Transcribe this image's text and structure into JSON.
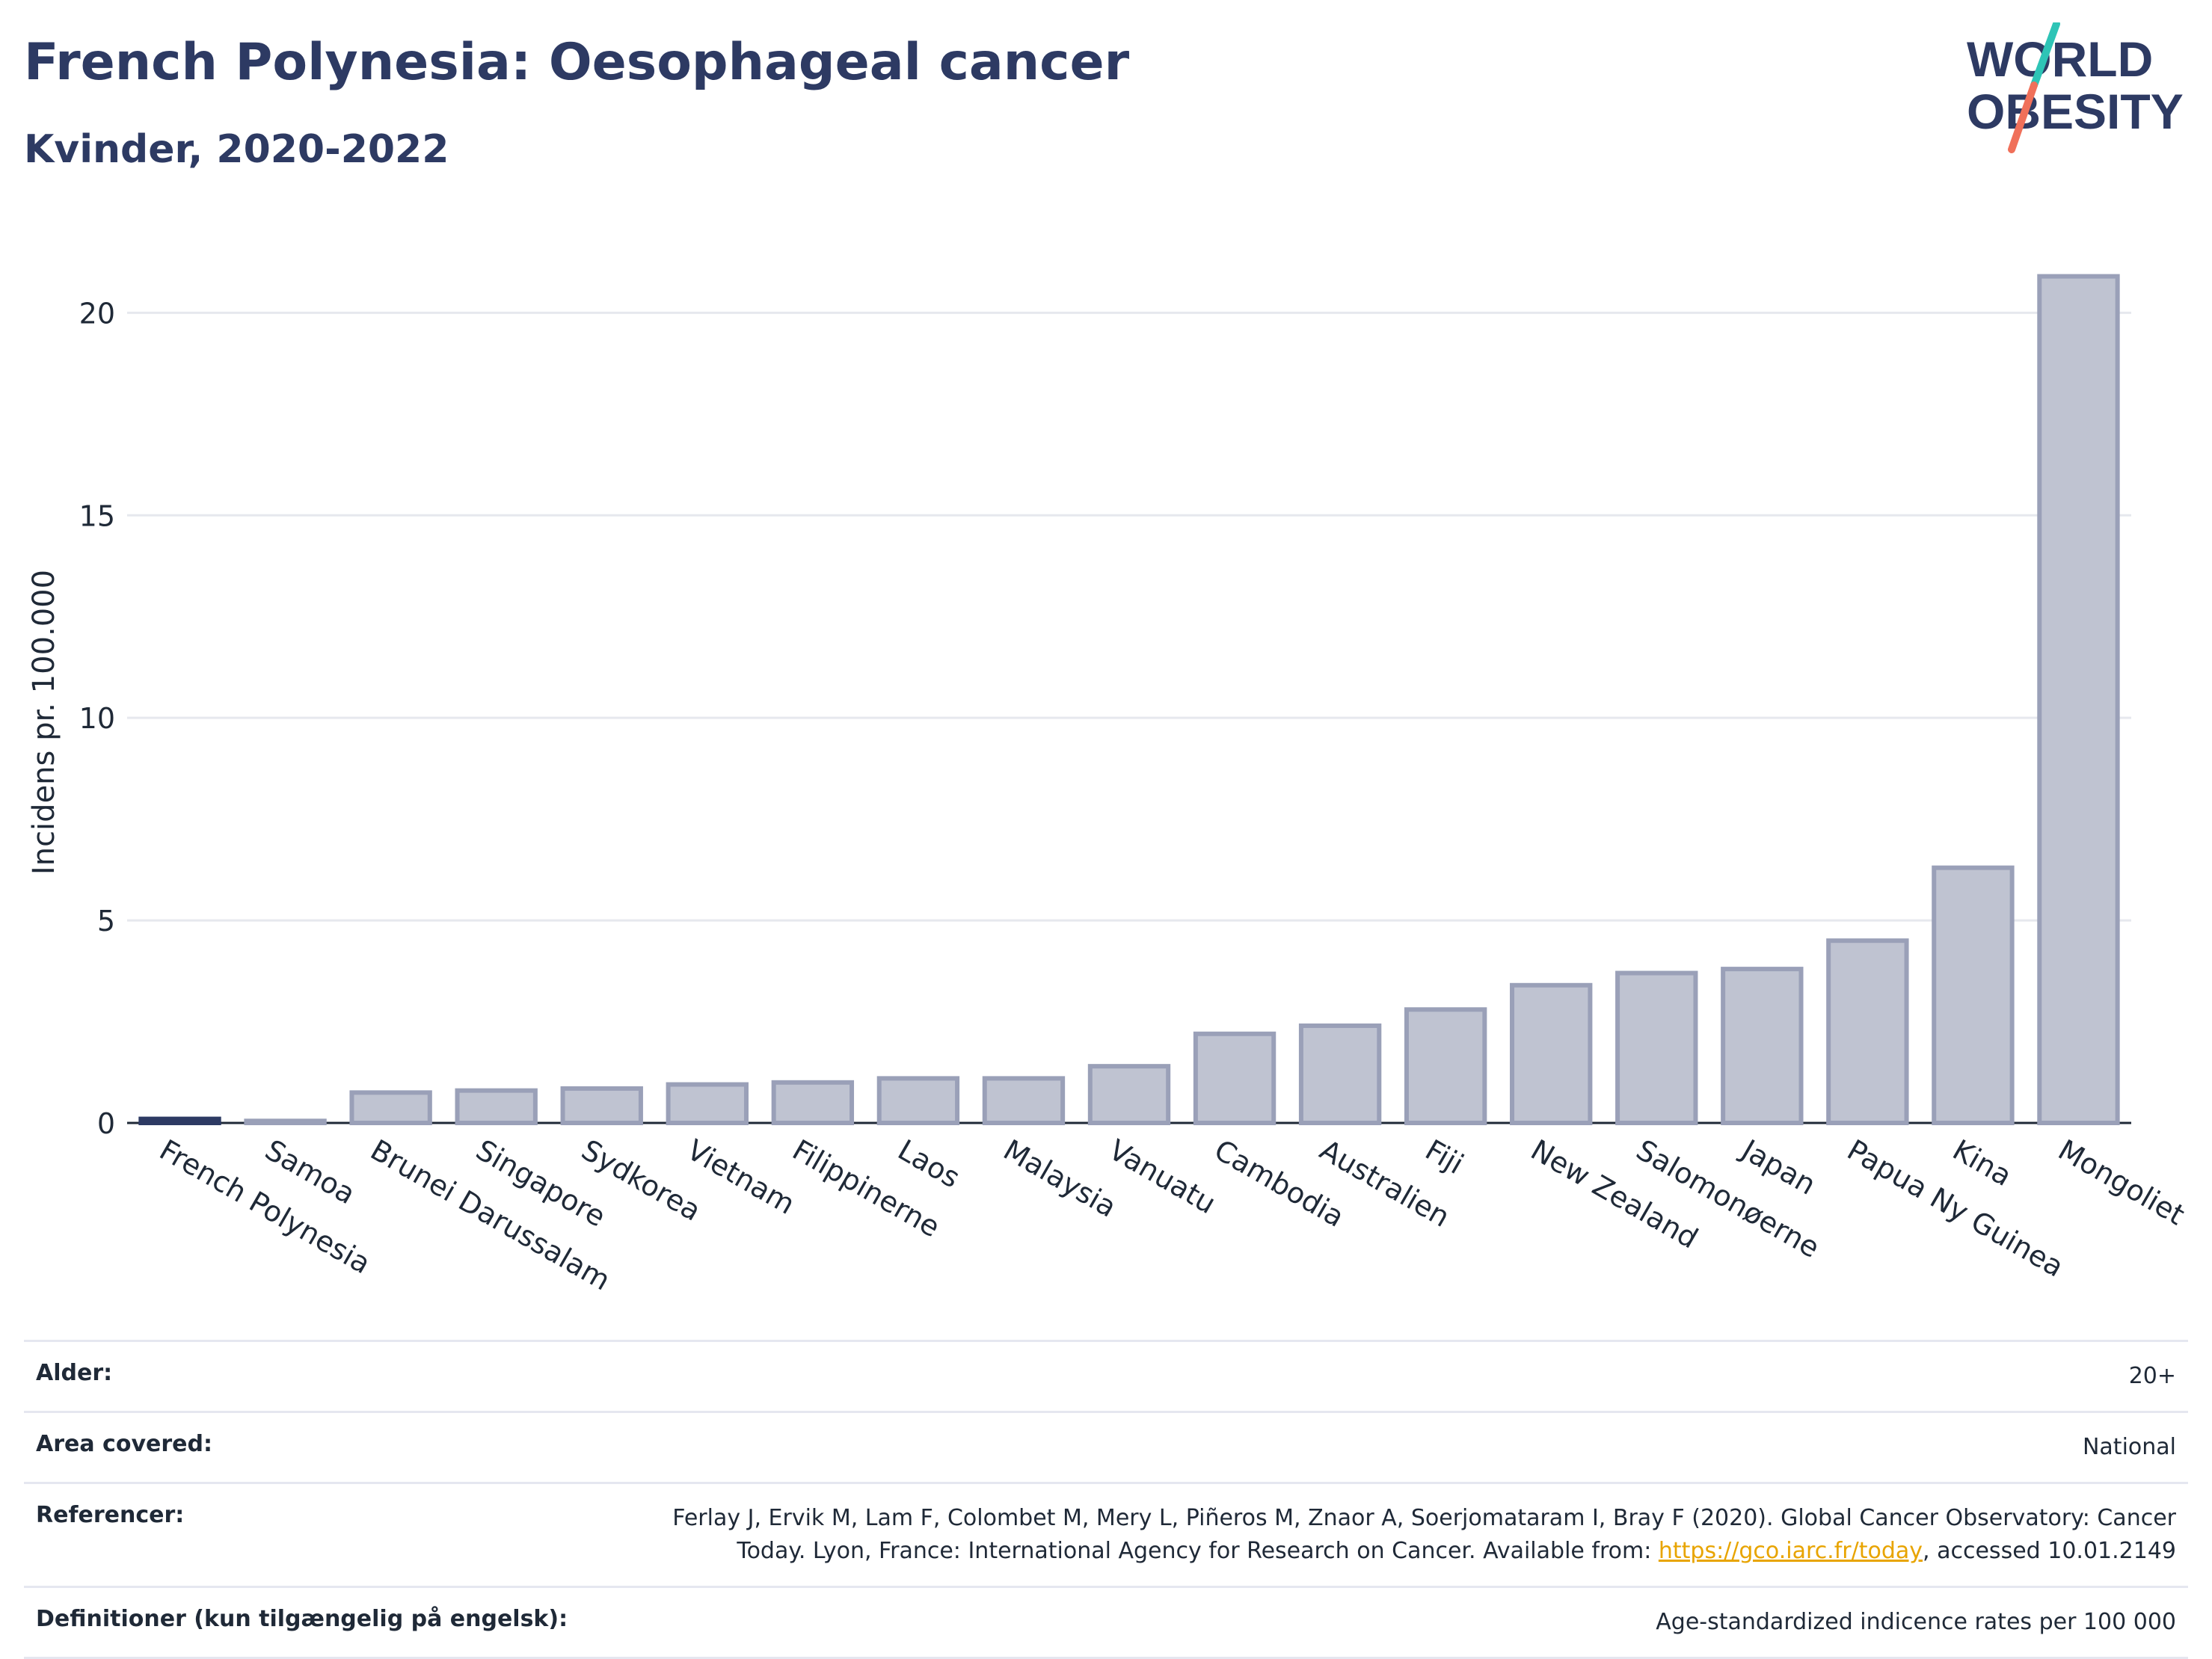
{
  "header": {
    "title": "French Polynesia: Oesophageal cancer",
    "subtitle": "Kvinder, 2020-2022"
  },
  "logo": {
    "line1": "WORLD",
    "line2": "OBESITY",
    "accent_teal": "#2ec4b6",
    "accent_coral": "#f0705a",
    "text_color": "#2d3a63"
  },
  "chart_data": {
    "type": "bar",
    "title": "French Polynesia: Oesophageal cancer",
    "subtitle": "Kvinder, 2020-2022",
    "xlabel": "",
    "ylabel": "Incidens pr. 100.000",
    "ylim": [
      0,
      22
    ],
    "yticks": [
      0,
      5,
      10,
      15,
      20
    ],
    "grid": true,
    "categories": [
      "French Polynesia",
      "Samoa",
      "Brunei Darussalam",
      "Singapore",
      "Sydkorea",
      "Vietnam",
      "Filippinerne",
      "Laos",
      "Malaysia",
      "Vanuatu",
      "Cambodia",
      "Australien",
      "Fiji",
      "New Zealand",
      "Salomonøerne",
      "Japan",
      "Papua Ny Guinea",
      "Kina",
      "Mongoliet"
    ],
    "values": [
      0.1,
      0.05,
      0.75,
      0.8,
      0.85,
      0.95,
      1.0,
      1.1,
      1.1,
      1.4,
      2.2,
      2.4,
      2.8,
      3.4,
      3.7,
      3.8,
      4.5,
      6.3,
      20.9
    ],
    "highlight_index": 0,
    "colors": {
      "highlight": "#2d3a63",
      "bar_fill": "#bfc3d1",
      "bar_edge": "#9aa0b8",
      "grid": "#e6e8ee",
      "axis": "#1f2937"
    }
  },
  "footer": {
    "rows": [
      {
        "label": "Alder:",
        "value": "20+"
      },
      {
        "label": "Area covered:",
        "value": "National"
      },
      {
        "label": "Referencer:",
        "value_pre": "Ferlay J, Ervik M, Lam F, Colombet M, Mery L, Piñeros M, Znaor A, Soerjomataram I, Bray F (2020). Global Cancer Observatory: Cancer Today. Lyon, France: International Agency for Research on Cancer. Available from: ",
        "link": "https://gco.iarc.fr/today",
        "value_post": ", accessed 10.01.2149"
      },
      {
        "label": "Definitioner (kun tilgængelig på engelsk):",
        "value": "Age-standardized indicence rates per 100 000"
      }
    ]
  }
}
